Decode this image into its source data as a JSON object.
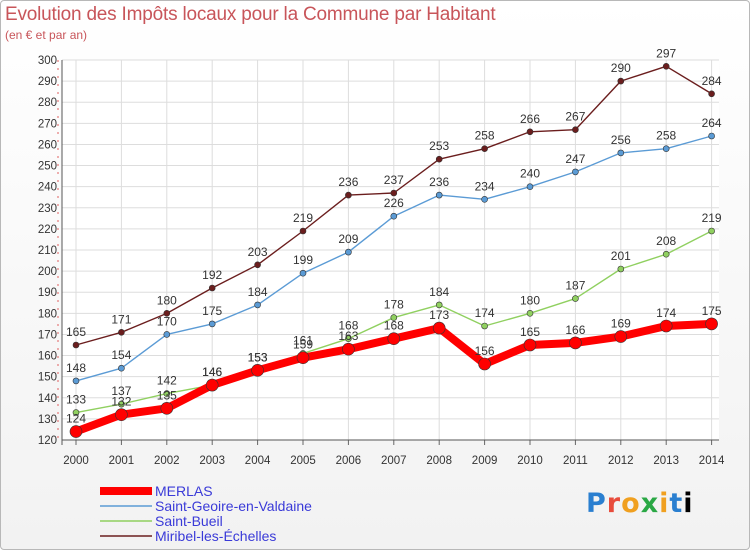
{
  "header": {
    "title": "Evolution des Impôts locaux pour la Commune par Habitant",
    "subtitle": "(en € et par an)"
  },
  "logo": {
    "text": "Proxiti"
  },
  "chart_data": {
    "type": "line",
    "x": [
      2000,
      2001,
      2002,
      2003,
      2004,
      2005,
      2006,
      2007,
      2008,
      2009,
      2010,
      2011,
      2012,
      2013,
      2014
    ],
    "ylim": [
      120,
      300
    ],
    "yticks": [
      120,
      130,
      140,
      150,
      160,
      170,
      180,
      190,
      200,
      210,
      220,
      230,
      240,
      250,
      260,
      270,
      280,
      290,
      300
    ],
    "grid": true,
    "legend_position": "bottom-left",
    "series": [
      {
        "name": "Miribel-les-Échelles",
        "color": "#6b1e1e",
        "values": [
          165,
          171,
          180,
          192,
          203,
          219,
          236,
          237,
          253,
          258,
          266,
          267,
          290,
          297,
          284
        ]
      },
      {
        "name": "Saint-Geoire-en-Valdaine",
        "color": "#5b9bd5",
        "values": [
          148,
          154,
          170,
          175,
          184,
          199,
          209,
          226,
          236,
          234,
          240,
          247,
          256,
          258,
          264
        ]
      },
      {
        "name": "Saint-Bueil",
        "color": "#90d060",
        "values": [
          133,
          137,
          142,
          146,
          153,
          161,
          168,
          178,
          184,
          174,
          180,
          187,
          201,
          208,
          219
        ]
      },
      {
        "name": "MERLAS",
        "color": "#ff0000",
        "values": [
          124,
          132,
          135,
          146,
          153,
          159,
          163,
          168,
          173,
          156,
          165,
          166,
          169,
          174,
          175
        ]
      }
    ],
    "legend": [
      "MERLAS",
      "Saint-Geoire-en-Valdaine",
      "Saint-Bueil",
      "Miribel-les-Échelles"
    ]
  }
}
